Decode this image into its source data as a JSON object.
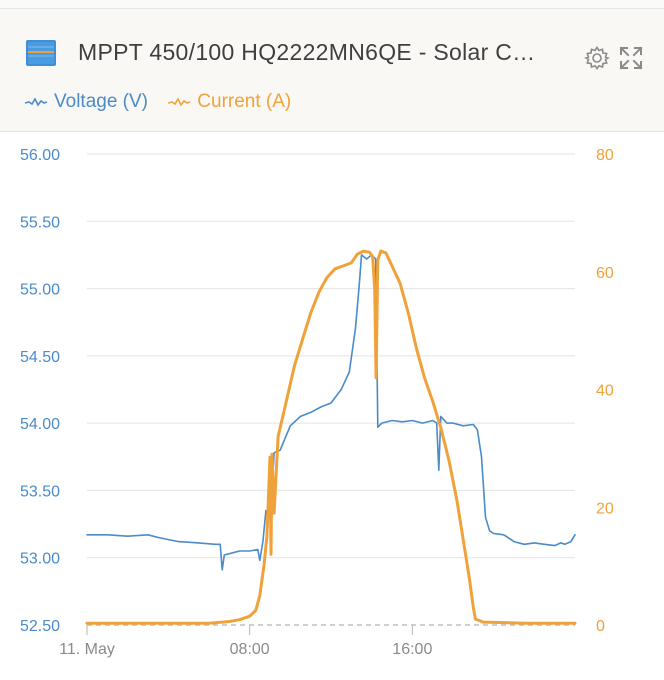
{
  "widget": {
    "title": "MPPT 450/100 HQ2222MN6QE - Solar C…",
    "icons": [
      "solar-charger-icon",
      "gear-icon",
      "expand-icon"
    ]
  },
  "legend": {
    "voltage_label": "Voltage (V)",
    "current_label": "Current (A)"
  },
  "colors": {
    "voltage": "#4a8bc8",
    "current": "#f0a23a",
    "header_bg": "#faf8f4",
    "grid": "#e3e3e3",
    "baseline": "#b5b5b5"
  },
  "chart_data": {
    "type": "line",
    "x_unit": "hour of day, 11 May",
    "x_range": [
      0,
      24
    ],
    "xtick_labels": [
      {
        "x": 0,
        "label": "11. May"
      },
      {
        "x": 8,
        "label": "08:00"
      },
      {
        "x": 16,
        "label": "16:00"
      }
    ],
    "y_left": {
      "label": "Voltage (V)",
      "ylim": [
        52.5,
        56.0
      ],
      "ticks": [
        "52.50",
        "53.00",
        "53.50",
        "54.00",
        "54.50",
        "55.00",
        "55.50",
        "56.00"
      ]
    },
    "y_right": {
      "label": "Current (A)",
      "ylim": [
        0,
        80
      ],
      "ticks": [
        "0",
        "20",
        "40",
        "60",
        "80"
      ]
    },
    "grid": true,
    "legend_position": "top-left",
    "series": [
      {
        "name": "Voltage (V)",
        "axis": "left",
        "points": [
          [
            0,
            53.17
          ],
          [
            1.0,
            53.17
          ],
          [
            2.0,
            53.16
          ],
          [
            3.0,
            53.17
          ],
          [
            3.5,
            53.15
          ],
          [
            4.5,
            53.12
          ],
          [
            5.5,
            53.11
          ],
          [
            6.3,
            53.1
          ],
          [
            6.55,
            53.1
          ],
          [
            6.65,
            52.91
          ],
          [
            6.75,
            53.02
          ],
          [
            7.0,
            53.03
          ],
          [
            7.5,
            53.05
          ],
          [
            8.0,
            53.05
          ],
          [
            8.4,
            53.06
          ],
          [
            8.5,
            52.98
          ],
          [
            8.65,
            53.12
          ],
          [
            8.8,
            53.35
          ],
          [
            8.9,
            53.3
          ],
          [
            9.0,
            53.65
          ],
          [
            9.1,
            53.5
          ],
          [
            9.2,
            53.78
          ],
          [
            9.5,
            53.8
          ],
          [
            10.0,
            53.98
          ],
          [
            10.5,
            54.05
          ],
          [
            11.0,
            54.08
          ],
          [
            11.5,
            54.12
          ],
          [
            12.0,
            54.15
          ],
          [
            12.5,
            54.25
          ],
          [
            12.9,
            54.38
          ],
          [
            13.2,
            54.7
          ],
          [
            13.4,
            55.05
          ],
          [
            13.5,
            55.25
          ],
          [
            13.75,
            55.22
          ],
          [
            14.0,
            55.25
          ],
          [
            14.2,
            55.22
          ],
          [
            14.3,
            53.97
          ],
          [
            14.5,
            54.0
          ],
          [
            15.0,
            54.02
          ],
          [
            15.5,
            54.01
          ],
          [
            16.0,
            54.02
          ],
          [
            16.5,
            54.0
          ],
          [
            17.0,
            54.02
          ],
          [
            17.2,
            54.0
          ],
          [
            17.3,
            53.65
          ],
          [
            17.4,
            54.05
          ],
          [
            17.7,
            54.0
          ],
          [
            18.0,
            54.0
          ],
          [
            18.5,
            53.98
          ],
          [
            19.0,
            53.99
          ],
          [
            19.2,
            53.95
          ],
          [
            19.4,
            53.75
          ],
          [
            19.6,
            53.3
          ],
          [
            19.8,
            53.2
          ],
          [
            20.0,
            53.18
          ],
          [
            20.5,
            53.17
          ],
          [
            21.0,
            53.12
          ],
          [
            21.5,
            53.1
          ],
          [
            22.0,
            53.11
          ],
          [
            22.5,
            53.1
          ],
          [
            23.0,
            53.09
          ],
          [
            23.3,
            53.11
          ],
          [
            23.5,
            53.1
          ],
          [
            23.8,
            53.12
          ],
          [
            24.0,
            53.17
          ]
        ]
      },
      {
        "name": "Current (A)",
        "axis": "right",
        "points": [
          [
            0,
            0.3
          ],
          [
            6.0,
            0.3
          ],
          [
            7.0,
            0.6
          ],
          [
            7.5,
            0.9
          ],
          [
            8.0,
            1.5
          ],
          [
            8.3,
            2.5
          ],
          [
            8.5,
            5.0
          ],
          [
            8.7,
            10.0
          ],
          [
            8.85,
            15.0
          ],
          [
            9.0,
            28.5
          ],
          [
            9.05,
            12.0
          ],
          [
            9.1,
            29.0
          ],
          [
            9.2,
            19.0
          ],
          [
            9.4,
            32.0
          ],
          [
            9.8,
            38.0
          ],
          [
            10.2,
            44.0
          ],
          [
            10.6,
            48.5
          ],
          [
            11.0,
            53.0
          ],
          [
            11.4,
            56.5
          ],
          [
            11.8,
            59.0
          ],
          [
            12.2,
            60.5
          ],
          [
            12.6,
            61.0
          ],
          [
            13.0,
            61.5
          ],
          [
            13.3,
            63.0
          ],
          [
            13.6,
            63.5
          ],
          [
            13.9,
            63.3
          ],
          [
            14.05,
            62.5
          ],
          [
            14.15,
            57.0
          ],
          [
            14.22,
            42.0
          ],
          [
            14.3,
            62.0
          ],
          [
            14.45,
            63.5
          ],
          [
            14.7,
            63.2
          ],
          [
            15.0,
            61.0
          ],
          [
            15.4,
            58.0
          ],
          [
            15.8,
            53.0
          ],
          [
            16.2,
            47.0
          ],
          [
            16.6,
            42.0
          ],
          [
            17.0,
            38.0
          ],
          [
            17.4,
            33.5
          ],
          [
            17.8,
            28.0
          ],
          [
            18.2,
            21.0
          ],
          [
            18.5,
            14.5
          ],
          [
            18.8,
            8.0
          ],
          [
            19.0,
            3.0
          ],
          [
            19.1,
            1.0
          ],
          [
            19.5,
            0.5
          ],
          [
            20.5,
            0.4
          ],
          [
            21.5,
            0.3
          ],
          [
            24.0,
            0.3
          ]
        ]
      }
    ]
  }
}
